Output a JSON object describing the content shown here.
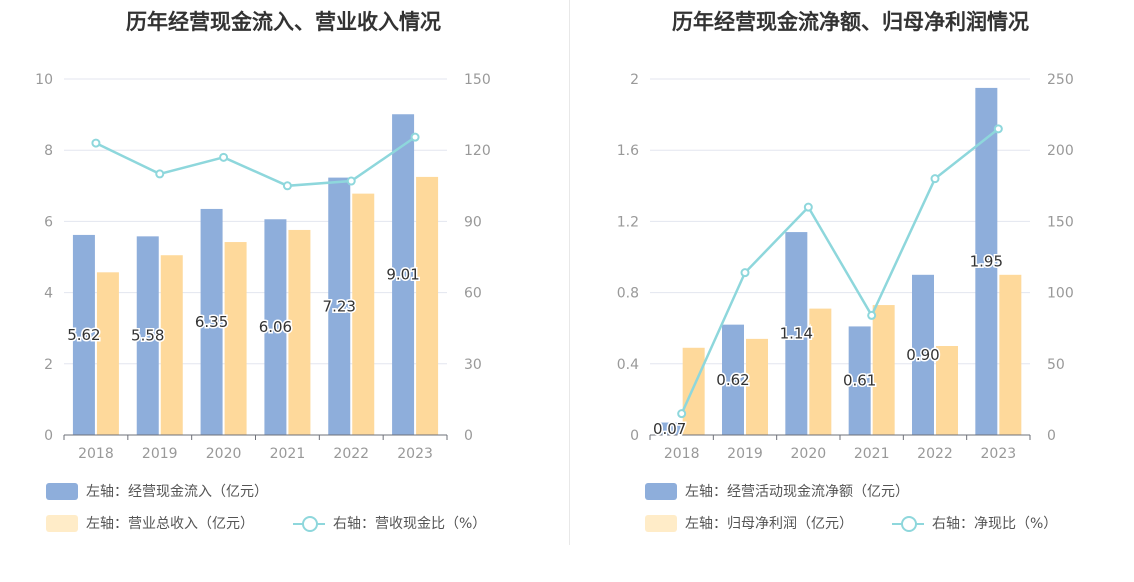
{
  "colors": {
    "bar_primary": "#8eaedb",
    "bar_secondary": "#fed99b",
    "line": "#8ed7dc",
    "axis_text": "#999999",
    "grid": "#e3e6ef"
  },
  "chart_data": [
    {
      "type": "bar",
      "title": "历年经营现金流入、营业收入情况",
      "categories": [
        "2018",
        "2019",
        "2020",
        "2021",
        "2022",
        "2023"
      ],
      "left_axis": {
        "min": 0,
        "max": 10,
        "ticks": [
          "0",
          "2",
          "4",
          "6",
          "8",
          "10"
        ]
      },
      "right_axis": {
        "min": 0,
        "max": 150,
        "ticks": [
          "0",
          "30",
          "60",
          "90",
          "120",
          "150"
        ]
      },
      "series": [
        {
          "name": "左轴：经营现金流入（亿元）",
          "kind": "bar",
          "axis": "left",
          "values": [
            5.62,
            5.58,
            6.35,
            6.06,
            7.23,
            9.01
          ],
          "labels": [
            "5.62",
            "5.58",
            "6.35",
            "6.06",
            "7.23",
            "9.01"
          ]
        },
        {
          "name": "左轴：营业总收入（亿元）",
          "kind": "bar",
          "axis": "left",
          "values": [
            4.57,
            5.05,
            5.42,
            5.76,
            6.78,
            7.25
          ]
        },
        {
          "name": "右轴：营收现金比（%）",
          "kind": "line",
          "axis": "right",
          "values": [
            123,
            110,
            117,
            105,
            107,
            125.5
          ]
        }
      ]
    },
    {
      "type": "bar",
      "title": "历年经营现金流净额、归母净利润情况",
      "categories": [
        "2018",
        "2019",
        "2020",
        "2021",
        "2022",
        "2023"
      ],
      "left_axis": {
        "min": 0,
        "max": 2,
        "ticks": [
          "0",
          "0.4",
          "0.8",
          "1.2",
          "1.6",
          "2"
        ]
      },
      "right_axis": {
        "min": 0,
        "max": 250,
        "ticks": [
          "0",
          "50",
          "100",
          "150",
          "200",
          "250"
        ]
      },
      "series": [
        {
          "name": "左轴：经营活动现金流净额（亿元）",
          "kind": "bar",
          "axis": "left",
          "values": [
            0.07,
            0.62,
            1.14,
            0.61,
            0.9,
            1.95
          ],
          "labels": [
            "0.07",
            "0.62",
            "1.14",
            "0.61",
            "0.90",
            "1.95"
          ]
        },
        {
          "name": "左轴：归母净利润（亿元）",
          "kind": "bar",
          "axis": "left",
          "values": [
            0.49,
            0.54,
            0.71,
            0.73,
            0.5,
            0.9
          ]
        },
        {
          "name": "右轴：净现比（%）",
          "kind": "line",
          "axis": "right",
          "values": [
            15,
            114,
            160,
            84,
            180,
            215
          ]
        }
      ]
    }
  ]
}
